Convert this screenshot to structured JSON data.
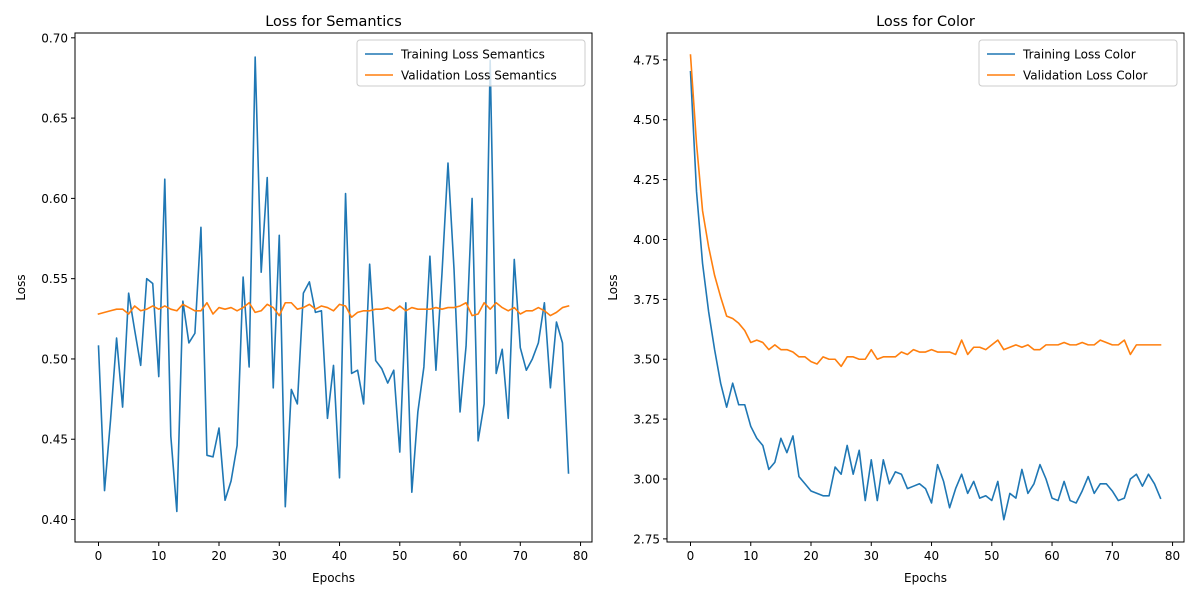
{
  "chart_data": [
    {
      "type": "line",
      "title": "Loss for Semantics",
      "xlabel": "Epochs",
      "ylabel": "Loss",
      "xlim": [
        -3.9,
        81.9
      ],
      "ylim": [
        0.386,
        0.703
      ],
      "xticks": [
        0,
        10,
        20,
        30,
        40,
        50,
        60,
        70,
        80
      ],
      "yticks": [
        0.4,
        0.45,
        0.5,
        0.55,
        0.6,
        0.65,
        0.7
      ],
      "ytick_labels": [
        "0.40",
        "0.45",
        "0.50",
        "0.55",
        "0.60",
        "0.65",
        "0.70"
      ],
      "grid": false,
      "legend": "top-right",
      "x": [
        0,
        1,
        2,
        3,
        4,
        5,
        6,
        7,
        8,
        9,
        10,
        11,
        12,
        13,
        14,
        15,
        16,
        17,
        18,
        19,
        20,
        21,
        22,
        23,
        24,
        25,
        26,
        27,
        28,
        29,
        30,
        31,
        32,
        33,
        34,
        35,
        36,
        37,
        38,
        39,
        40,
        41,
        42,
        43,
        44,
        45,
        46,
        47,
        48,
        49,
        50,
        51,
        52,
        53,
        54,
        55,
        56,
        57,
        58,
        59,
        60,
        61,
        62,
        63,
        64,
        65,
        66,
        67,
        68,
        69,
        70,
        71,
        72,
        73,
        74,
        75,
        76,
        77,
        78
      ],
      "series": [
        {
          "name": "Training Loss Semantics",
          "color": "#1f77b4",
          "values": [
            0.508,
            0.418,
            0.462,
            0.513,
            0.47,
            0.541,
            0.518,
            0.496,
            0.55,
            0.547,
            0.489,
            0.612,
            0.452,
            0.405,
            0.536,
            0.51,
            0.516,
            0.582,
            0.44,
            0.439,
            0.457,
            0.412,
            0.424,
            0.446,
            0.551,
            0.495,
            0.688,
            0.554,
            0.613,
            0.482,
            0.577,
            0.408,
            0.481,
            0.472,
            0.541,
            0.548,
            0.529,
            0.53,
            0.463,
            0.496,
            0.426,
            0.603,
            0.491,
            0.493,
            0.472,
            0.559,
            0.499,
            0.494,
            0.485,
            0.493,
            0.442,
            0.535,
            0.417,
            0.467,
            0.495,
            0.564,
            0.493,
            0.553,
            0.622,
            0.556,
            0.467,
            0.508,
            0.6,
            0.449,
            0.472,
            0.686,
            0.491,
            0.506,
            0.463,
            0.562,
            0.507,
            0.493,
            0.5,
            0.51,
            0.535,
            0.482,
            0.523,
            0.51,
            0.429
          ]
        },
        {
          "name": "Validation Loss Semantics",
          "color": "#ff7f0e",
          "values": [
            0.528,
            0.529,
            0.53,
            0.531,
            0.531,
            0.528,
            0.533,
            0.53,
            0.531,
            0.533,
            0.531,
            0.533,
            0.531,
            0.53,
            0.534,
            0.532,
            0.53,
            0.53,
            0.535,
            0.528,
            0.532,
            0.531,
            0.532,
            0.53,
            0.532,
            0.535,
            0.529,
            0.53,
            0.534,
            0.532,
            0.527,
            0.535,
            0.535,
            0.531,
            0.532,
            0.534,
            0.531,
            0.533,
            0.532,
            0.53,
            0.534,
            0.533,
            0.526,
            0.529,
            0.53,
            0.53,
            0.531,
            0.531,
            0.532,
            0.53,
            0.533,
            0.53,
            0.532,
            0.531,
            0.531,
            0.531,
            0.532,
            0.531,
            0.532,
            0.532,
            0.533,
            0.535,
            0.527,
            0.528,
            0.535,
            0.531,
            0.535,
            0.532,
            0.53,
            0.532,
            0.528,
            0.53,
            0.53,
            0.532,
            0.53,
            0.527,
            0.529,
            0.532,
            0.533
          ]
        }
      ]
    },
    {
      "type": "line",
      "title": "Loss for Color",
      "xlabel": "Epochs",
      "ylabel": "Loss",
      "xlim": [
        -3.9,
        81.9
      ],
      "ylim": [
        2.737,
        4.862
      ],
      "xticks": [
        0,
        10,
        20,
        30,
        40,
        50,
        60,
        70,
        80
      ],
      "yticks": [
        2.75,
        3.0,
        3.25,
        3.5,
        3.75,
        4.0,
        4.25,
        4.5,
        4.75
      ],
      "ytick_labels": [
        "2.75",
        "3.00",
        "3.25",
        "3.50",
        "3.75",
        "4.00",
        "4.25",
        "4.50",
        "4.75"
      ],
      "grid": false,
      "legend": "top-right",
      "x": [
        0,
        1,
        2,
        3,
        4,
        5,
        6,
        7,
        8,
        9,
        10,
        11,
        12,
        13,
        14,
        15,
        16,
        17,
        18,
        19,
        20,
        21,
        22,
        23,
        24,
        25,
        26,
        27,
        28,
        29,
        30,
        31,
        32,
        33,
        34,
        35,
        36,
        37,
        38,
        39,
        40,
        41,
        42,
        43,
        44,
        45,
        46,
        47,
        48,
        49,
        50,
        51,
        52,
        53,
        54,
        55,
        56,
        57,
        58,
        59,
        60,
        61,
        62,
        63,
        64,
        65,
        66,
        67,
        68,
        69,
        70,
        71,
        72,
        73,
        74,
        75,
        76,
        77,
        78
      ],
      "series": [
        {
          "name": "Training Loss Color",
          "color": "#1f77b4",
          "values": [
            4.7,
            4.2,
            3.9,
            3.7,
            3.54,
            3.4,
            3.3,
            3.4,
            3.31,
            3.31,
            3.22,
            3.17,
            3.14,
            3.04,
            3.07,
            3.17,
            3.11,
            3.18,
            3.01,
            2.98,
            2.95,
            2.94,
            2.93,
            2.93,
            3.05,
            3.02,
            3.14,
            3.02,
            3.12,
            2.91,
            3.08,
            2.91,
            3.08,
            2.98,
            3.03,
            3.02,
            2.96,
            2.97,
            2.98,
            2.96,
            2.9,
            3.06,
            2.99,
            2.88,
            2.96,
            3.02,
            2.94,
            2.99,
            2.92,
            2.93,
            2.91,
            2.99,
            2.83,
            2.94,
            2.92,
            3.04,
            2.94,
            2.98,
            3.06,
            3.0,
            2.92,
            2.91,
            2.99,
            2.91,
            2.9,
            2.95,
            3.01,
            2.94,
            2.98,
            2.98,
            2.95,
            2.91,
            2.92,
            3.0,
            3.02,
            2.97,
            3.02,
            2.98,
            2.92
          ]
        },
        {
          "name": "Validation Loss Color",
          "color": "#ff7f0e",
          "values": [
            4.77,
            4.4,
            4.12,
            3.97,
            3.85,
            3.76,
            3.68,
            3.67,
            3.65,
            3.62,
            3.57,
            3.58,
            3.57,
            3.54,
            3.56,
            3.54,
            3.54,
            3.53,
            3.51,
            3.51,
            3.49,
            3.48,
            3.51,
            3.5,
            3.5,
            3.47,
            3.51,
            3.51,
            3.5,
            3.5,
            3.54,
            3.5,
            3.51,
            3.51,
            3.51,
            3.53,
            3.52,
            3.54,
            3.53,
            3.53,
            3.54,
            3.53,
            3.53,
            3.53,
            3.52,
            3.58,
            3.52,
            3.55,
            3.55,
            3.54,
            3.56,
            3.58,
            3.54,
            3.55,
            3.56,
            3.55,
            3.56,
            3.54,
            3.54,
            3.56,
            3.56,
            3.56,
            3.57,
            3.56,
            3.56,
            3.57,
            3.56,
            3.56,
            3.58,
            3.57,
            3.56,
            3.56,
            3.58,
            3.52,
            3.56,
            3.56,
            3.56,
            3.56,
            3.56
          ]
        }
      ]
    }
  ]
}
